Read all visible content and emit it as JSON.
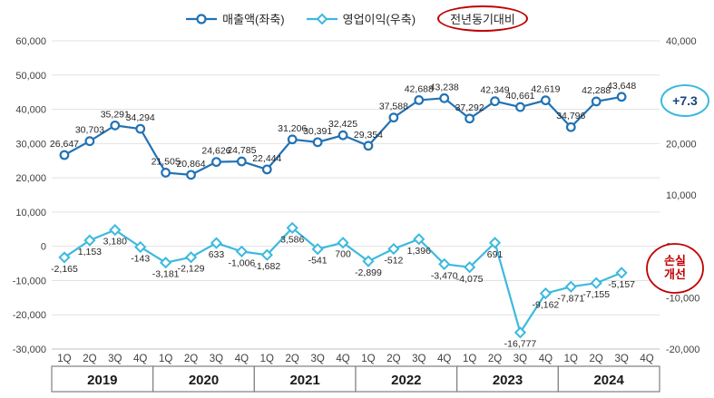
{
  "legend": {
    "series1": "매출액(좌축)",
    "series2": "영업이익(우축)",
    "yoy_label": "전년동기대비"
  },
  "annotations": {
    "revenue_badge": "+7.3",
    "loss_badge_line1": "손실",
    "loss_badge_line2": "개선"
  },
  "colors": {
    "revenue": "#2272B4",
    "profit": "#3DB9DE",
    "badge_red": "#C00000",
    "badge_text_blue": "#17457E",
    "grid": "#E2E2E2",
    "axis_text": "#404040",
    "label_text": "#262626",
    "year_box_border": "#7F7F7F"
  },
  "chart_data": {
    "type": "line",
    "title": "",
    "x_categories": [
      "1Q",
      "2Q",
      "3Q",
      "4Q",
      "1Q",
      "2Q",
      "3Q",
      "4Q",
      "1Q",
      "2Q",
      "3Q",
      "4Q",
      "1Q",
      "2Q",
      "3Q",
      "4Q",
      "1Q",
      "2Q",
      "3Q",
      "4Q",
      "1Q",
      "2Q",
      "3Q",
      "4Q"
    ],
    "years": [
      "2019",
      "2020",
      "2021",
      "2022",
      "2023",
      "2024"
    ],
    "series": [
      {
        "name": "매출액(좌축)",
        "axis": "left",
        "marker": "circle",
        "values": [
          26647,
          30703,
          35291,
          34294,
          21505,
          20864,
          24626,
          24785,
          22444,
          31206,
          30391,
          32425,
          29354,
          37588,
          42688,
          43238,
          37292,
          42349,
          40661,
          42619,
          34796,
          42288,
          43648,
          null
        ]
      },
      {
        "name": "영업이익(우축)",
        "axis": "right",
        "marker": "diamond",
        "values": [
          -2165,
          1153,
          3180,
          -143,
          -3181,
          -2129,
          633,
          -1006,
          -1682,
          3586,
          -541,
          700,
          -2899,
          -512,
          1396,
          -3470,
          -4075,
          691,
          -16777,
          -9162,
          -7871,
          -7155,
          -5157,
          null
        ]
      }
    ],
    "left_axis": {
      "min": -30000,
      "max": 60000,
      "step": 10000
    },
    "right_axis": {
      "min": -20000,
      "max": 40000,
      "step": 10000
    },
    "grid": true,
    "legend_position": "top"
  }
}
